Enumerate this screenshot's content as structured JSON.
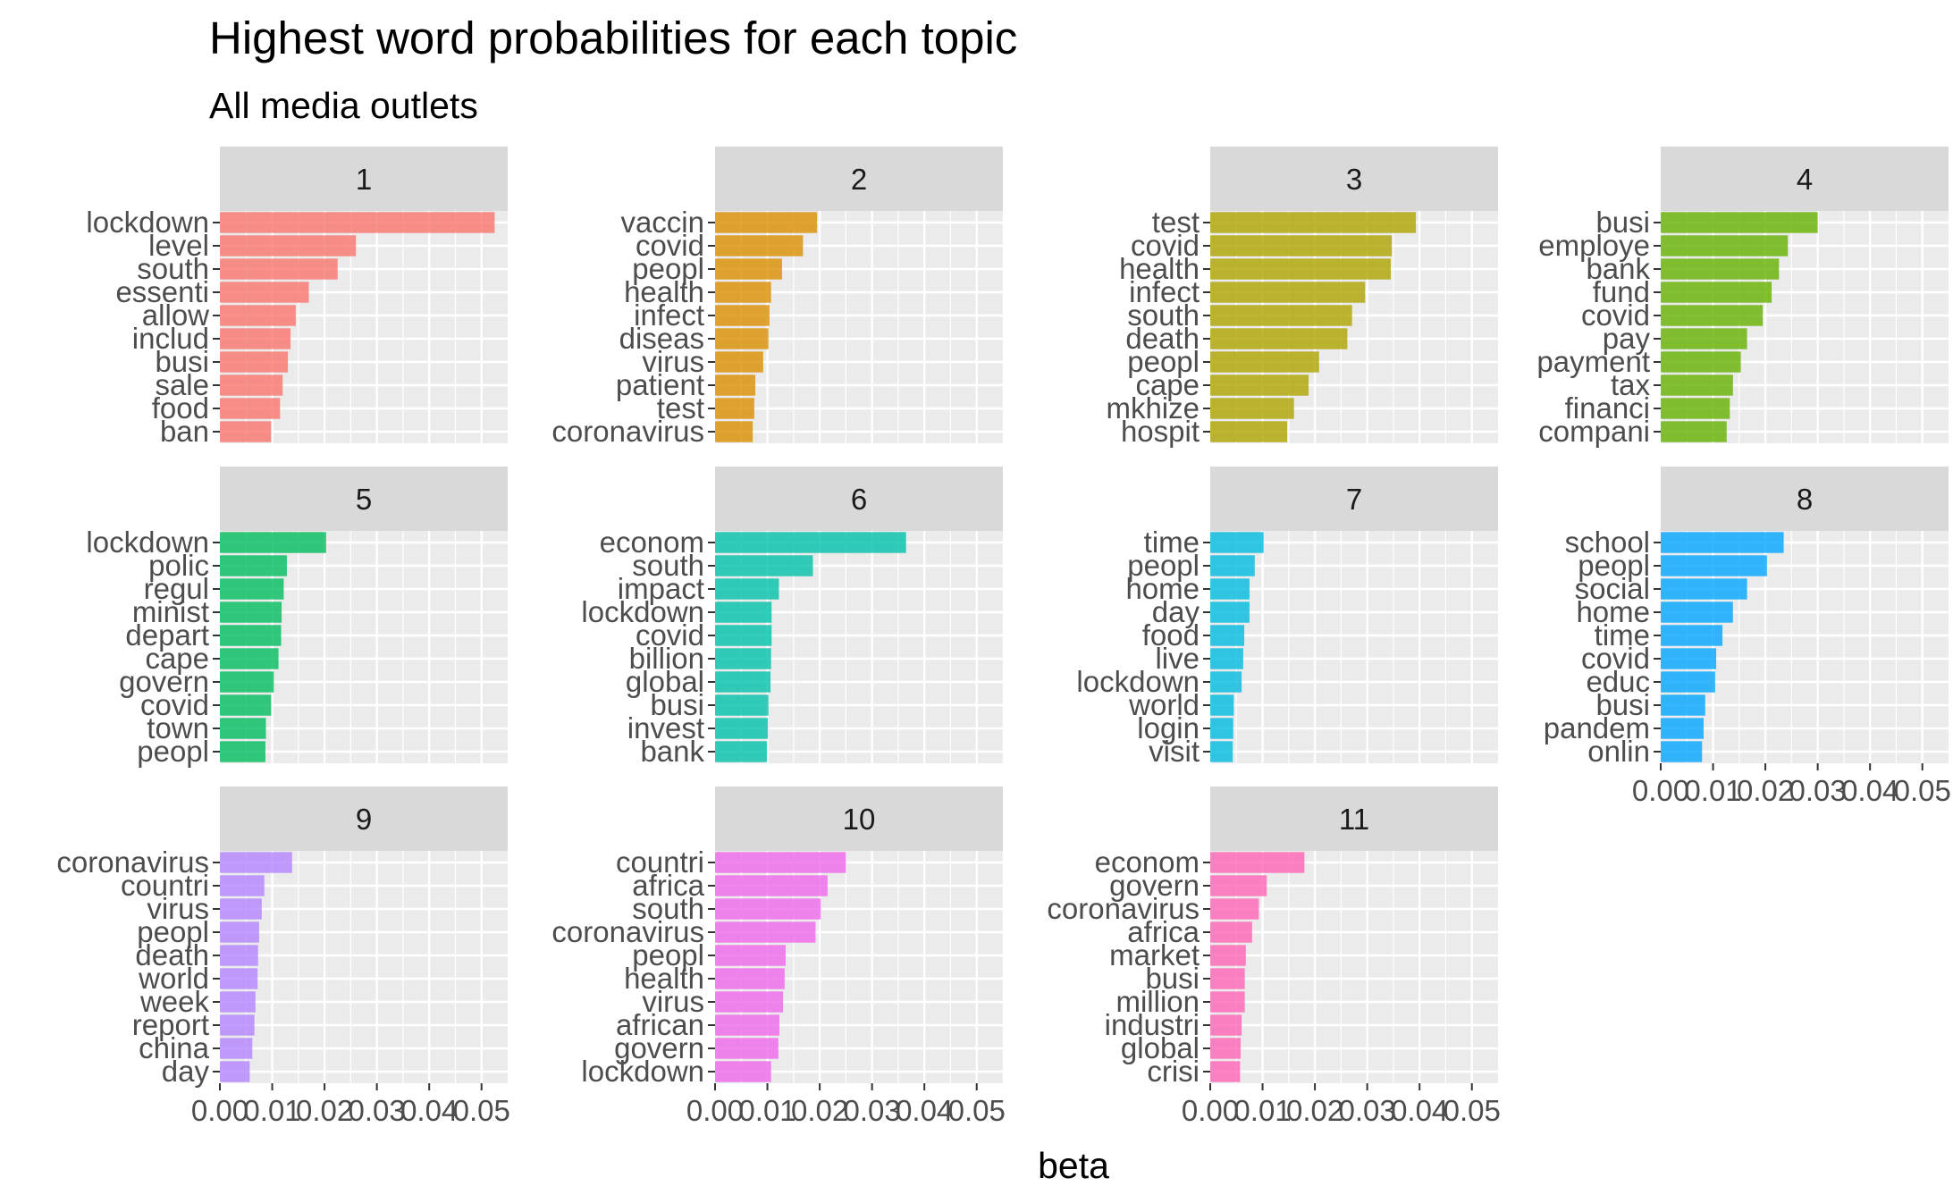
{
  "chart_data": {
    "type": "bar",
    "orientation": "horizontal",
    "title": "Highest word probabilities for each topic",
    "subtitle": "All media outlets",
    "xlabel": "beta",
    "ylabel": "",
    "xlim": [
      0,
      0.055
    ],
    "x_ticks": [
      0,
      0.01,
      0.02,
      0.03,
      0.04,
      0.05
    ],
    "x_tick_labels": [
      "0.00",
      "0.01",
      "0.02",
      "0.03",
      "0.04",
      "0.05"
    ],
    "grid": true,
    "legend": "none",
    "facets": [
      {
        "label": "1",
        "color": "#F8766D",
        "categories": [
          "lockdown",
          "level",
          "south",
          "essenti",
          "allow",
          "includ",
          "busi",
          "sale",
          "food",
          "ban"
        ],
        "values": [
          0.0525,
          0.026,
          0.0225,
          0.017,
          0.0145,
          0.0135,
          0.013,
          0.012,
          0.0115,
          0.0098
        ]
      },
      {
        "label": "2",
        "color": "#DB8E00",
        "categories": [
          "vaccin",
          "covid",
          "peopl",
          "health",
          "infect",
          "diseas",
          "virus",
          "patient",
          "test",
          "coronavirus"
        ],
        "values": [
          0.0195,
          0.0168,
          0.0128,
          0.0107,
          0.0104,
          0.0102,
          0.0092,
          0.0077,
          0.0075,
          0.0072
        ]
      },
      {
        "label": "3",
        "color": "#AEA200",
        "categories": [
          "test",
          "covid",
          "health",
          "infect",
          "south",
          "death",
          "peopl",
          "cape",
          "mkhize",
          "hospit"
        ],
        "values": [
          0.0393,
          0.0347,
          0.0345,
          0.0296,
          0.0271,
          0.0262,
          0.0208,
          0.0188,
          0.016,
          0.0147
        ]
      },
      {
        "label": "4",
        "color": "#64B200",
        "categories": [
          "busi",
          "employe",
          "bank",
          "fund",
          "covid",
          "pay",
          "payment",
          "tax",
          "financi",
          "compani"
        ],
        "values": [
          0.03,
          0.0243,
          0.0226,
          0.0212,
          0.0195,
          0.0165,
          0.0153,
          0.0138,
          0.0132,
          0.0126
        ]
      },
      {
        "label": "5",
        "color": "#00BD5C",
        "categories": [
          "lockdown",
          "polic",
          "regul",
          "minist",
          "depart",
          "cape",
          "govern",
          "covid",
          "town",
          "peopl"
        ],
        "values": [
          0.0203,
          0.0128,
          0.0122,
          0.0118,
          0.0117,
          0.0112,
          0.0103,
          0.0098,
          0.0088,
          0.0087
        ]
      },
      {
        "label": "6",
        "color": "#00C1A7",
        "categories": [
          "econom",
          "south",
          "impact",
          "lockdown",
          "covid",
          "billion",
          "global",
          "busi",
          "invest",
          "bank"
        ],
        "values": [
          0.0365,
          0.0187,
          0.0122,
          0.0108,
          0.0108,
          0.0107,
          0.0106,
          0.0102,
          0.0101,
          0.0099
        ]
      },
      {
        "label": "7",
        "color": "#00BADE",
        "categories": [
          "time",
          "peopl",
          "home",
          "day",
          "food",
          "live",
          "lockdown",
          "world",
          "login",
          "visit"
        ],
        "values": [
          0.0102,
          0.0085,
          0.0075,
          0.0075,
          0.0065,
          0.0063,
          0.006,
          0.0045,
          0.0044,
          0.0043
        ]
      },
      {
        "label": "8",
        "color": "#00A6FF",
        "categories": [
          "school",
          "peopl",
          "social",
          "home",
          "time",
          "covid",
          "educ",
          "busi",
          "pandem",
          "onlin"
        ],
        "values": [
          0.0235,
          0.0203,
          0.0165,
          0.0138,
          0.0118,
          0.0106,
          0.0104,
          0.0085,
          0.0082,
          0.0079
        ]
      },
      {
        "label": "9",
        "color": "#B385FF",
        "categories": [
          "coronavirus",
          "countri",
          "virus",
          "peopl",
          "death",
          "world",
          "week",
          "report",
          "china",
          "day"
        ],
        "values": [
          0.0138,
          0.0085,
          0.008,
          0.0075,
          0.0073,
          0.0072,
          0.0068,
          0.0066,
          0.0062,
          0.0057
        ]
      },
      {
        "label": "10",
        "color": "#EF67EB",
        "categories": [
          "countri",
          "africa",
          "south",
          "coronavirus",
          "peopl",
          "health",
          "virus",
          "african",
          "govern",
          "lockdown"
        ],
        "values": [
          0.025,
          0.0215,
          0.0202,
          0.0192,
          0.0135,
          0.0133,
          0.013,
          0.0123,
          0.0121,
          0.0107
        ]
      },
      {
        "label": "11",
        "color": "#FF63B6",
        "categories": [
          "econom",
          "govern",
          "coronavirus",
          "africa",
          "market",
          "busi",
          "million",
          "industri",
          "global",
          "crisi"
        ],
        "values": [
          0.018,
          0.0108,
          0.0093,
          0.008,
          0.0068,
          0.0066,
          0.0066,
          0.006,
          0.0058,
          0.0057
        ]
      }
    ]
  }
}
